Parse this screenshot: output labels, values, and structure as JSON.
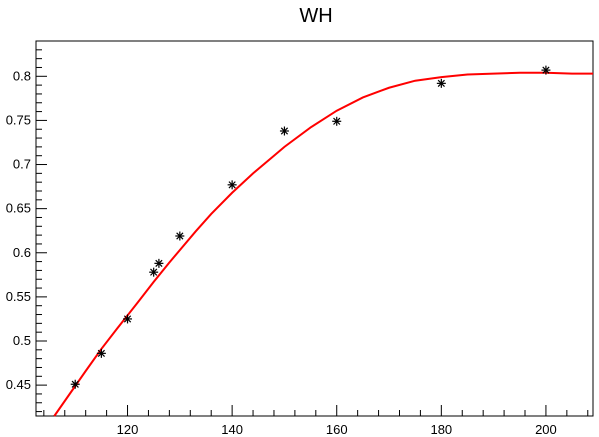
{
  "chart_data": {
    "type": "scatter",
    "title": "WH",
    "xlabel": "",
    "ylabel": "",
    "xlim": [
      102.5,
      209
    ],
    "ylim": [
      0.415,
      0.84
    ],
    "x_ticks": [
      120,
      140,
      160,
      180,
      200
    ],
    "y_ticks": [
      0.45,
      0.5,
      0.55,
      0.6,
      0.65,
      0.7,
      0.75,
      0.8
    ],
    "grid": false,
    "legend": "none",
    "series": [
      {
        "type": "scatter",
        "marker": "asterisk",
        "color": "#000000",
        "x": [
          110,
          115,
          120,
          125,
          126,
          130,
          140,
          150,
          160,
          180,
          200
        ],
        "y": [
          0.451,
          0.486,
          0.525,
          0.578,
          0.588,
          0.619,
          0.677,
          0.738,
          0.749,
          0.792,
          0.807
        ]
      },
      {
        "type": "line",
        "color": "#ff0000",
        "x": [
          106,
          108,
          110,
          112,
          115,
          118,
          120,
          122,
          125,
          128,
          130,
          133,
          136,
          140,
          144,
          148,
          150,
          155,
          160,
          165,
          170,
          175,
          180,
          185,
          190,
          195,
          200,
          205,
          209
        ],
        "y": [
          0.415,
          0.432,
          0.449,
          0.466,
          0.491,
          0.514,
          0.529,
          0.544,
          0.567,
          0.589,
          0.603,
          0.624,
          0.644,
          0.668,
          0.69,
          0.71,
          0.72,
          0.742,
          0.761,
          0.776,
          0.787,
          0.795,
          0.799,
          0.802,
          0.803,
          0.804,
          0.804,
          0.803,
          0.803
        ]
      }
    ]
  }
}
